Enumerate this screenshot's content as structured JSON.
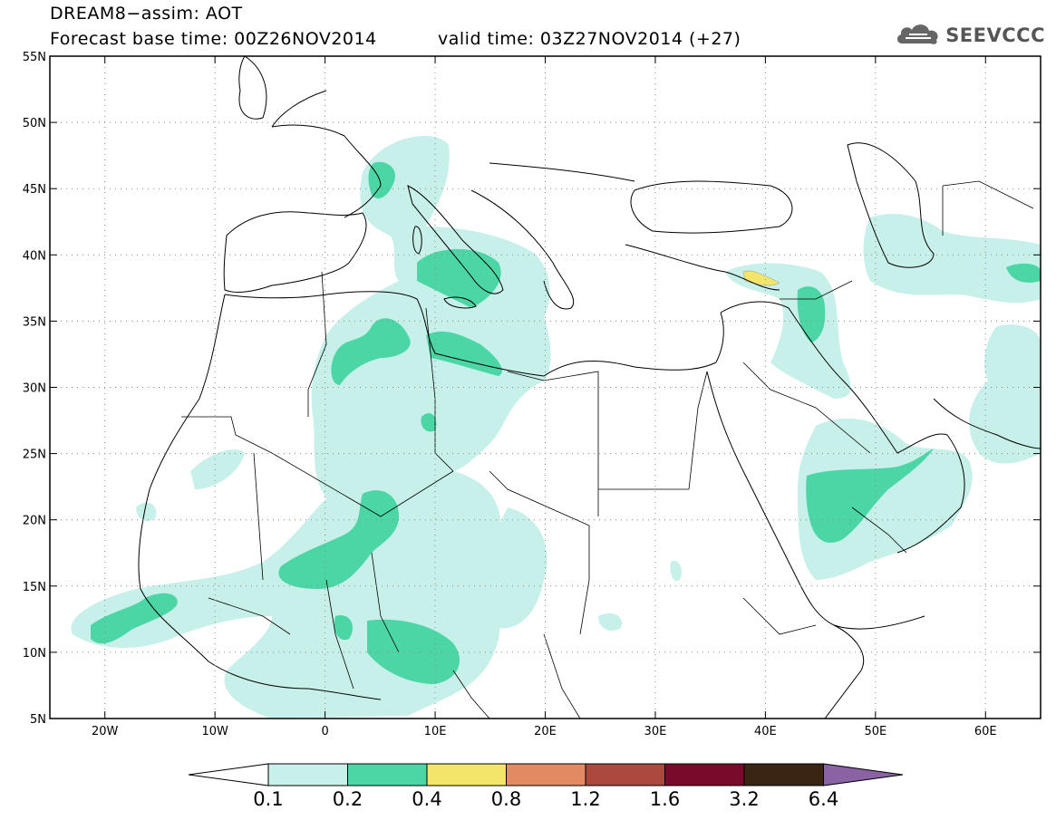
{
  "header": {
    "title": "DREAM8−assim: AOT",
    "base_time": "Forecast base time: 00Z26NOV2014",
    "valid_time": "valid time: 03Z27NOV2014 (+27)",
    "logo_text": "SEEVCCC",
    "logo_icon": "cloud-icon"
  },
  "map": {
    "region": {
      "lon": [
        -25,
        65
      ],
      "lat": [
        5,
        55
      ]
    },
    "lat_labels": [
      "55N",
      "50N",
      "45N",
      "40N",
      "35N",
      "30N",
      "25N",
      "20N",
      "15N",
      "10N",
      "5N"
    ],
    "lon_labels": [
      "20W",
      "10W",
      "0",
      "10E",
      "20E",
      "30E",
      "40E",
      "50E",
      "60E"
    ],
    "lat_values": [
      55,
      50,
      45,
      40,
      35,
      30,
      25,
      20,
      15,
      10,
      5
    ],
    "lon_values": [
      -20,
      -10,
      0,
      10,
      20,
      30,
      40,
      50,
      60
    ],
    "grid": "dotted"
  },
  "colorbar": {
    "labels": [
      "0.1",
      "0.2",
      "0.4",
      "0.8",
      "1.2",
      "1.6",
      "3.2",
      "6.4"
    ],
    "colors": [
      "#c8f0ea",
      "#4cd6a6",
      "#f2e56a",
      "#e48a62",
      "#a94a3c",
      "#7a0a2c",
      "#3a2414",
      "#8a63a5"
    ],
    "under_color": "#ffffff"
  },
  "aot_levels": {
    "light": "#c8f0ea",
    "medium": "#4cd6a6",
    "high": "#f2e56a"
  }
}
